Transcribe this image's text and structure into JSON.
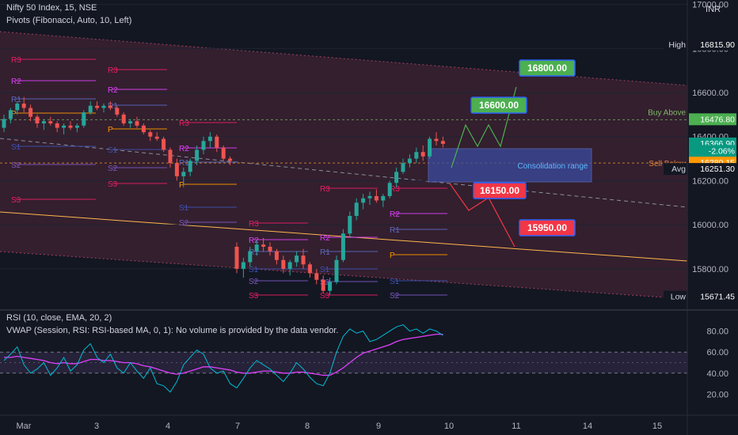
{
  "header": {
    "symbol_line": "Nifty 50 Index, 15, NSE",
    "pivots_line": "Pivots (Fibonacci, Auto, 10, Left)",
    "currency": "INR",
    "rsi_line": "RSI (10, close, EMA, 20, 2)",
    "vwap_line": "VWAP (Session, RSI: RSI-based MA, 0, 1): No volume is provided by the data vendor."
  },
  "colors": {
    "background": "#131722",
    "up": "#26a69a",
    "down": "#ef5350",
    "channel_fill": "#3a2130",
    "pivot_p": "#ff9800",
    "pivot_r": "#e91e63",
    "pivot_s": "#3f51b5",
    "rsi": "#00bcd4",
    "rsi_ma": "#e040fb",
    "buy_label": "#4caf50",
    "sell_label": "#f23645",
    "consolidation": "#3a4aa0"
  },
  "chart_data": {
    "type": "candlestick",
    "title": "Nifty 50 Index, 15, NSE",
    "x_ticks": [
      "Mar",
      "3",
      "4",
      "7",
      "8",
      "9",
      "10",
      "11",
      "14",
      "15"
    ],
    "y_range": [
      15620,
      17020
    ],
    "y_ticks": [
      15800,
      16000,
      16200,
      16400,
      16600,
      16800,
      17000
    ],
    "y_tick_labels": [
      "15800.00",
      "16000.00",
      "16200.00",
      "16400.00",
      "16600.00",
      "16800.00",
      "17000.00"
    ],
    "price_labels": [
      {
        "text": "High",
        "value": "16815.90",
        "y": 16815.9
      },
      {
        "text": "",
        "value": "16476.80",
        "y": 16476.8
      },
      {
        "text": "",
        "value": "16366.90",
        "y": 16366.9
      },
      {
        "text": "",
        "value": "-2.06%",
        "y": 16333
      },
      {
        "text": "",
        "value": "16280.15",
        "y": 16280.15
      },
      {
        "text": "Avg",
        "value": "16251.30",
        "y": 16251.3
      },
      {
        "text": "Low",
        "value": "15671.45",
        "y": 15671.45
      }
    ],
    "annotations": {
      "buy_above": "Buy Above",
      "sell_below": "Sell Below",
      "consolidation": "Consolidation range",
      "targets_up": [
        "16600.00",
        "16800.00"
      ],
      "targets_down": [
        "16150.00",
        "15950.00"
      ]
    },
    "pivot_labels": [
      "R3",
      "R2",
      "R1",
      "P",
      "S1",
      "S2",
      "S3"
    ],
    "candles": [
      [
        16440,
        16500,
        16420,
        16480
      ],
      [
        16480,
        16530,
        16460,
        16520
      ],
      [
        16520,
        16560,
        16500,
        16550
      ],
      [
        16550,
        16580,
        16510,
        16530
      ],
      [
        16530,
        16545,
        16470,
        16490
      ],
      [
        16490,
        16500,
        16440,
        16460
      ],
      [
        16460,
        16480,
        16430,
        16470
      ],
      [
        16470,
        16490,
        16450,
        16460
      ],
      [
        16460,
        16470,
        16420,
        16440
      ],
      [
        16440,
        16460,
        16410,
        16450
      ],
      [
        16450,
        16470,
        16430,
        16440
      ],
      [
        16440,
        16460,
        16420,
        16450
      ],
      [
        16450,
        16520,
        16440,
        16510
      ],
      [
        16510,
        16560,
        16500,
        16540
      ],
      [
        16540,
        16560,
        16520,
        16530
      ],
      [
        16530,
        16550,
        16510,
        16540
      ],
      [
        16540,
        16560,
        16520,
        16530
      ],
      [
        16530,
        16540,
        16490,
        16500
      ],
      [
        16500,
        16510,
        16450,
        16460
      ],
      [
        16460,
        16480,
        16440,
        16470
      ],
      [
        16470,
        16490,
        16440,
        16450
      ],
      [
        16450,
        16460,
        16410,
        16420
      ],
      [
        16420,
        16430,
        16380,
        16400
      ],
      [
        16400,
        16420,
        16380,
        16390
      ],
      [
        16390,
        16400,
        16330,
        16340
      ],
      [
        16340,
        16350,
        16260,
        16280
      ],
      [
        16280,
        16300,
        16200,
        16220
      ],
      [
        16220,
        16260,
        16170,
        16240
      ],
      [
        16240,
        16300,
        16220,
        16290
      ],
      [
        16290,
        16360,
        16270,
        16340
      ],
      [
        16340,
        16400,
        16320,
        16380
      ],
      [
        16380,
        16420,
        16350,
        16400
      ],
      [
        16400,
        16410,
        16330,
        16350
      ],
      [
        16350,
        16360,
        16290,
        16300
      ],
      [
        16300,
        16310,
        16270,
        16290
      ],
      [
        15900,
        15920,
        15780,
        15800
      ],
      [
        15800,
        15850,
        15760,
        15830
      ],
      [
        15830,
        15900,
        15810,
        15880
      ],
      [
        15880,
        15930,
        15860,
        15910
      ],
      [
        15910,
        15940,
        15880,
        15900
      ],
      [
        15900,
        15920,
        15860,
        15880
      ],
      [
        15880,
        15890,
        15820,
        15840
      ],
      [
        15840,
        15860,
        15780,
        15800
      ],
      [
        15800,
        15840,
        15770,
        15830
      ],
      [
        15830,
        15880,
        15810,
        15860
      ],
      [
        15860,
        15890,
        15800,
        15820
      ],
      [
        15820,
        15830,
        15760,
        15780
      ],
      [
        15780,
        15800,
        15730,
        15750
      ],
      [
        15750,
        15770,
        15690,
        15700
      ],
      [
        15700,
        15760,
        15680,
        15740
      ],
      [
        15740,
        15860,
        15730,
        15840
      ],
      [
        15840,
        15980,
        15830,
        15960
      ],
      [
        15960,
        16060,
        15940,
        16040
      ],
      [
        16040,
        16120,
        16020,
        16100
      ],
      [
        16100,
        16140,
        16070,
        16120
      ],
      [
        16120,
        16150,
        16090,
        16130
      ],
      [
        16130,
        16160,
        16100,
        16110
      ],
      [
        16110,
        16140,
        16080,
        16130
      ],
      [
        16130,
        16200,
        16120,
        16190
      ],
      [
        16190,
        16260,
        16170,
        16240
      ],
      [
        16240,
        16300,
        16230,
        16280
      ],
      [
        16280,
        16320,
        16260,
        16300
      ],
      [
        16300,
        16350,
        16280,
        16330
      ],
      [
        16330,
        16360,
        16290,
        16310
      ],
      [
        16310,
        16400,
        16300,
        16390
      ],
      [
        16390,
        16420,
        16360,
        16380
      ],
      [
        16380,
        16400,
        16350,
        16367
      ]
    ],
    "rsi_range": [
      0,
      100
    ],
    "rsi_ticks": [
      "80.00",
      "60.00",
      "40.00",
      "20.00"
    ],
    "rsi_tick_values": [
      80,
      60,
      40,
      20
    ],
    "rsi": [
      52,
      58,
      65,
      48,
      40,
      44,
      50,
      38,
      45,
      55,
      42,
      48,
      62,
      68,
      55,
      50,
      58,
      45,
      40,
      50,
      42,
      35,
      45,
      30,
      28,
      22,
      32,
      48,
      55,
      62,
      58,
      45,
      40,
      42,
      30,
      26,
      35,
      45,
      52,
      48,
      44,
      38,
      32,
      40,
      50,
      44,
      36,
      30,
      28,
      40,
      60,
      75,
      82,
      78,
      80,
      70,
      72,
      76,
      80,
      84,
      86,
      80,
      82,
      78,
      82,
      80,
      76
    ],
    "rsi_ma": [
      55,
      55,
      56,
      55,
      54,
      53,
      52,
      50,
      49,
      50,
      49,
      49,
      51,
      53,
      53,
      52,
      52,
      51,
      50,
      50,
      49,
      47,
      46,
      44,
      42,
      40,
      39,
      40,
      42,
      44,
      46,
      46,
      45,
      44,
      43,
      41,
      40,
      40,
      41,
      42,
      42,
      41,
      40,
      40,
      41,
      41,
      40,
      39,
      38,
      38,
      41,
      45,
      50,
      55,
      59,
      61,
      63,
      65,
      67,
      70,
      72,
      73,
      74,
      75,
      76,
      77,
      77
    ]
  }
}
